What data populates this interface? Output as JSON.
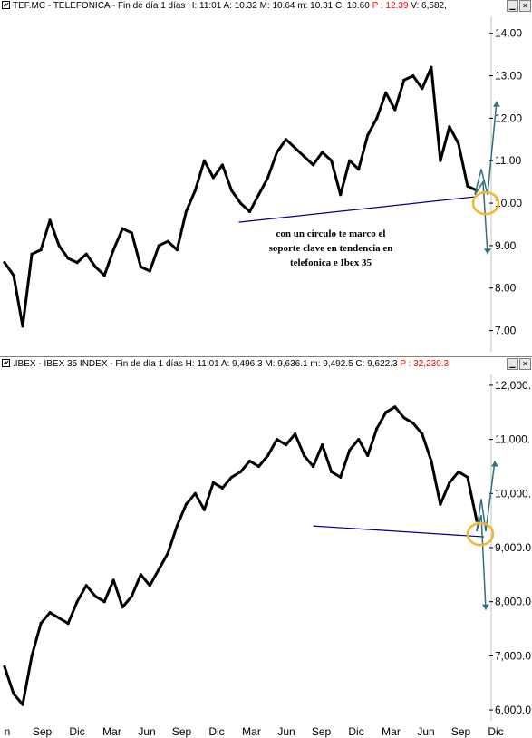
{
  "colors": {
    "price": "#000000",
    "trendline": "#00008b",
    "circle": "#f2b630",
    "arrow": "#2f6f7f",
    "accent_red": "#ff0000"
  },
  "x_axis_labels": [
    "n",
    "Sep",
    "Dic",
    "Mar",
    "Jun",
    "Sep",
    "Dic",
    "Mar",
    "Jun",
    "Sep",
    "Dic",
    "Mar",
    "Jun",
    "Sep",
    "Dic"
  ],
  "annotation": {
    "lines": [
      "con un círculo te marco el",
      "soporte clave en tendencia en",
      "telefonica e Ibex 35"
    ]
  },
  "chart_data": [
    {
      "type": "line",
      "header": {
        "symbol": "TEF.MC - TELEFONICA - Fin de día 1 días",
        "h": "H: 11:01",
        "a": "A: 10.32",
        "m": "M: 10.64",
        "low": "m: 10.31",
        "c": "C: 10.60",
        "p": "P : 12.39",
        "v": "V: 6,582,"
      },
      "ylim": [
        6.5,
        14.4
      ],
      "y_ticks": [
        "14.00",
        "13.00",
        "12.00",
        "11.00",
        "10.00",
        "9.00",
        "8.00",
        "7.00"
      ],
      "y_tick_values": [
        14,
        13,
        12,
        11,
        10,
        9,
        8,
        7
      ],
      "x": [
        0,
        10,
        20,
        30,
        40,
        50,
        60,
        70,
        80,
        90,
        100,
        110,
        120,
        130,
        140,
        150,
        160,
        170,
        180,
        190,
        200,
        210,
        220,
        230,
        240,
        250,
        260,
        270,
        280,
        290,
        300,
        310,
        320,
        330,
        340,
        350,
        360,
        370,
        380,
        390,
        400,
        410,
        420,
        430,
        440,
        450,
        460,
        470,
        480,
        490,
        500,
        510,
        520
      ],
      "values": [
        8.6,
        8.3,
        7.1,
        8.8,
        8.9,
        9.6,
        9.0,
        8.7,
        8.6,
        8.8,
        8.5,
        8.3,
        8.9,
        9.4,
        9.3,
        8.5,
        8.4,
        9.0,
        9.1,
        8.9,
        9.8,
        10.3,
        11.0,
        10.6,
        10.9,
        10.3,
        10.0,
        9.8,
        10.2,
        10.6,
        11.2,
        11.5,
        11.3,
        11.1,
        10.9,
        11.2,
        11.0,
        10.2,
        11.0,
        10.8,
        11.6,
        12.0,
        12.6,
        12.2,
        12.9,
        13.0,
        12.7,
        13.2,
        11.0,
        11.8,
        11.4,
        10.4,
        10.3
      ],
      "trendline": {
        "x": [
          258,
          518
        ],
        "y": [
          9.55,
          10.15
        ]
      },
      "support_circle": {
        "x": 530,
        "y": 10.0
      },
      "projection_up": {
        "x": [
          518,
          525,
          532,
          542
        ],
        "y": [
          10.2,
          10.8,
          10.2,
          12.4
        ]
      },
      "projection_down": {
        "x": [
          518,
          527,
          532
        ],
        "y": [
          10.2,
          10.5,
          8.8
        ]
      }
    },
    {
      "type": "line",
      "header": {
        "symbol": ".IBEX - IBEX 35 INDEX - Fin de día 1 días",
        "h": "H: 11:01",
        "a": "A: 9,496.3",
        "m": "M: 9,636.1",
        "low": "m: 9,492.5",
        "c": "C: 9,622.3",
        "p": "P : 32,230.3"
      },
      "ylim": [
        5800,
        12200
      ],
      "y_ticks": [
        "12,000.",
        "11,000.",
        "10,000.",
        "9,000.0",
        "8,000.0",
        "7,000.0",
        "6,000.0"
      ],
      "y_tick_values": [
        12000,
        11000,
        10000,
        9000,
        8000,
        7000,
        6000
      ],
      "x": [
        0,
        10,
        20,
        30,
        40,
        50,
        60,
        70,
        80,
        90,
        100,
        110,
        120,
        130,
        140,
        150,
        160,
        170,
        180,
        190,
        200,
        210,
        220,
        230,
        240,
        250,
        260,
        270,
        280,
        290,
        300,
        310,
        320,
        330,
        340,
        350,
        360,
        370,
        380,
        390,
        400,
        410,
        420,
        430,
        440,
        450,
        460,
        470,
        480,
        490,
        500,
        510,
        520
      ],
      "values": [
        6800,
        6300,
        6100,
        7000,
        7600,
        7800,
        7700,
        7600,
        8000,
        8300,
        8100,
        8000,
        8400,
        7900,
        8100,
        8500,
        8300,
        8600,
        8900,
        9400,
        9800,
        10000,
        9700,
        10200,
        10100,
        10300,
        10400,
        10600,
        10500,
        10700,
        11000,
        10900,
        11100,
        10700,
        10500,
        10900,
        10400,
        10300,
        10800,
        11000,
        10700,
        11200,
        11500,
        11600,
        11400,
        11300,
        11100,
        10600,
        9800,
        10200,
        10400,
        10300,
        9500
      ],
      "trendline": {
        "x": [
          340,
          528
        ],
        "y": [
          9400,
          9200
        ]
      },
      "support_circle": {
        "x": 524,
        "y": 9250
      },
      "projection_up": {
        "x": [
          520,
          525,
          530,
          540
        ],
        "y": [
          9300,
          9900,
          9300,
          10600
        ]
      },
      "projection_down": {
        "x": [
          520,
          525,
          530
        ],
        "y": [
          9300,
          9600,
          7850
        ]
      }
    }
  ]
}
